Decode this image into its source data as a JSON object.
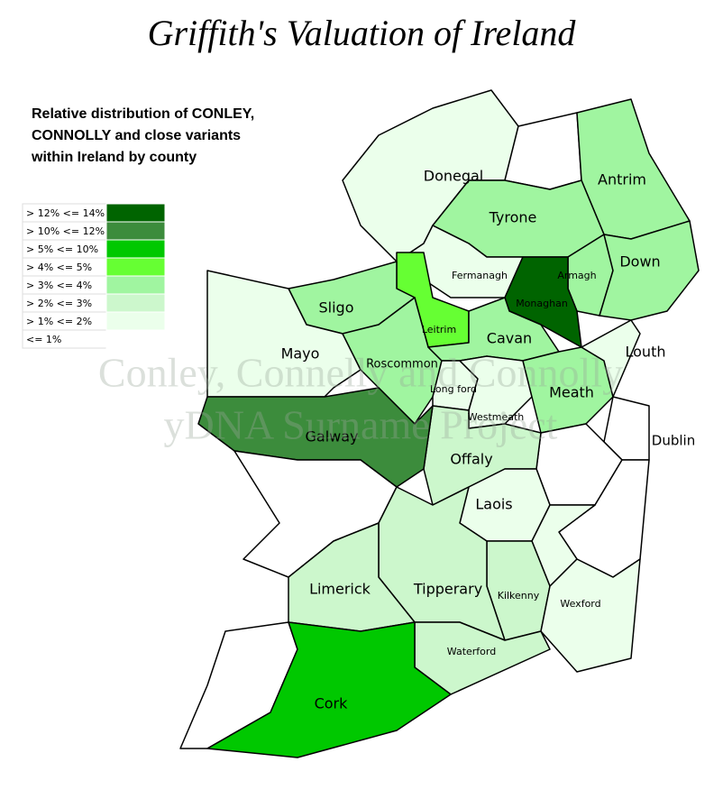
{
  "title": "Griffith's Valuation of Ireland",
  "subtitle": [
    "Relative distribution of CONLEY,",
    "CONNOLLY and close variants",
    "within Ireland by county"
  ],
  "legend": [
    {
      "label": "> 12% <= 14%",
      "color": "#006400"
    },
    {
      "label": "> 10% <= 12%",
      "color": "#3c8c3c"
    },
    {
      "label": "> 5% <= 10%",
      "color": "#00c800"
    },
    {
      "label": "> 4% <= 5%",
      "color": "#66ff33"
    },
    {
      "label": "> 3% <= 4%",
      "color": "#a0f5a0"
    },
    {
      "label": "> 2% <= 3%",
      "color": "#ccf7cc"
    },
    {
      "label": "> 1% <= 2%",
      "color": "#ebffeb"
    },
    {
      "label": "<= 1%",
      "color": "#ffffff"
    }
  ],
  "watermark": [
    "Conley, Connelly and Connolly",
    "yDNA Surname Project"
  ],
  "counties": [
    {
      "name": "Donegal",
      "color": "#ebffeb"
    },
    {
      "name": null,
      "color": "#ffffff"
    },
    {
      "name": "Antrim",
      "color": "#a0f5a0"
    },
    {
      "name": "Tyrone",
      "color": "#a0f5a0"
    },
    {
      "name": "Fermanagh",
      "color": "#ebffeb"
    },
    {
      "name": "Armagh",
      "color": "#a0f5a0"
    },
    {
      "name": "Down",
      "color": "#a0f5a0"
    },
    {
      "name": "Monaghan",
      "color": "#006400"
    },
    {
      "name": "Leitrim",
      "color": "#66ff33"
    },
    {
      "name": "Sligo",
      "color": "#a0f5a0"
    },
    {
      "name": "Mayo",
      "color": "#ebffeb"
    },
    {
      "name": "Roscommon",
      "color": "#a0f5a0"
    },
    {
      "name": "Cavan",
      "color": "#a0f5a0"
    },
    {
      "name": "Long ford",
      "color": "#ebffeb"
    },
    {
      "name": "Westmeath",
      "color": "#ebffeb"
    },
    {
      "name": "Meath",
      "color": "#a0f5a0"
    },
    {
      "name": "Louth",
      "color": "#ebffeb"
    },
    {
      "name": "Dublin",
      "color": "#ffffff"
    },
    {
      "name": null,
      "color": "#ffffff"
    },
    {
      "name": "Offaly",
      "color": "#ccf7cc"
    },
    {
      "name": "Galway",
      "color": "#3c8c3c"
    },
    {
      "name": null,
      "color": "#ffffff"
    },
    {
      "name": "Laois",
      "color": "#ebffeb"
    },
    {
      "name": null,
      "color": "#ffffff"
    },
    {
      "name": null,
      "color": "#ebffeb"
    },
    {
      "name": "Kilkenny",
      "color": "#ccf7cc"
    },
    {
      "name": "Tipperary",
      "color": "#ccf7cc"
    },
    {
      "name": "Limerick",
      "color": "#ccf7cc"
    },
    {
      "name": "Wexford",
      "color": "#ebffeb"
    },
    {
      "name": "Waterford",
      "color": "#ccf7cc"
    },
    {
      "name": null,
      "color": "#ffffff"
    },
    {
      "name": "Cork",
      "color": "#00c800"
    }
  ]
}
